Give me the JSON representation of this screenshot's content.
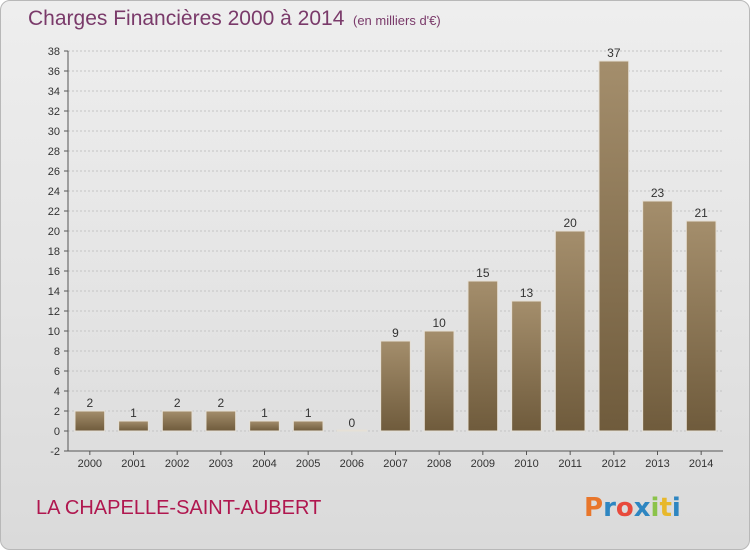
{
  "title": "Charges Financières 2000 à 2014",
  "unit_note": "(en milliers d'€)",
  "footer": {
    "town": "LA CHAPELLE-SAINT-AUBERT"
  },
  "logo": {
    "text": "Proxiti",
    "colors": [
      "#e8762b",
      "#2e86c1",
      "#e84a3c",
      "#2e86c1",
      "#8bc34a",
      "#e8b82b",
      "#2e86c1"
    ]
  },
  "colors": {
    "bar_top": "#a48e6c",
    "bar_bottom": "#6f5b3c",
    "title": "#7a3a6a",
    "town": "#b0174f",
    "axis": "#333333"
  },
  "chart_data": {
    "type": "bar",
    "categories": [
      "2000",
      "2001",
      "2002",
      "2003",
      "2004",
      "2005",
      "2006",
      "2007",
      "2008",
      "2009",
      "2010",
      "2011",
      "2012",
      "2013",
      "2014"
    ],
    "values": [
      2,
      1,
      2,
      2,
      1,
      1,
      0,
      9,
      10,
      15,
      13,
      20,
      37,
      23,
      21
    ],
    "data_labels": [
      "2",
      "1",
      "2",
      "2",
      "1",
      "1",
      "0",
      "9",
      "10",
      "15",
      "13",
      "20",
      "37",
      "23",
      "21"
    ],
    "ylim": [
      -2,
      38
    ],
    "yticks": [
      -2,
      0,
      2,
      4,
      6,
      8,
      10,
      12,
      14,
      16,
      18,
      20,
      22,
      24,
      26,
      28,
      30,
      32,
      34,
      36,
      38
    ],
    "grid": true,
    "title": "Charges Financières 2000 à 2014",
    "xlabel": "",
    "ylabel": ""
  }
}
